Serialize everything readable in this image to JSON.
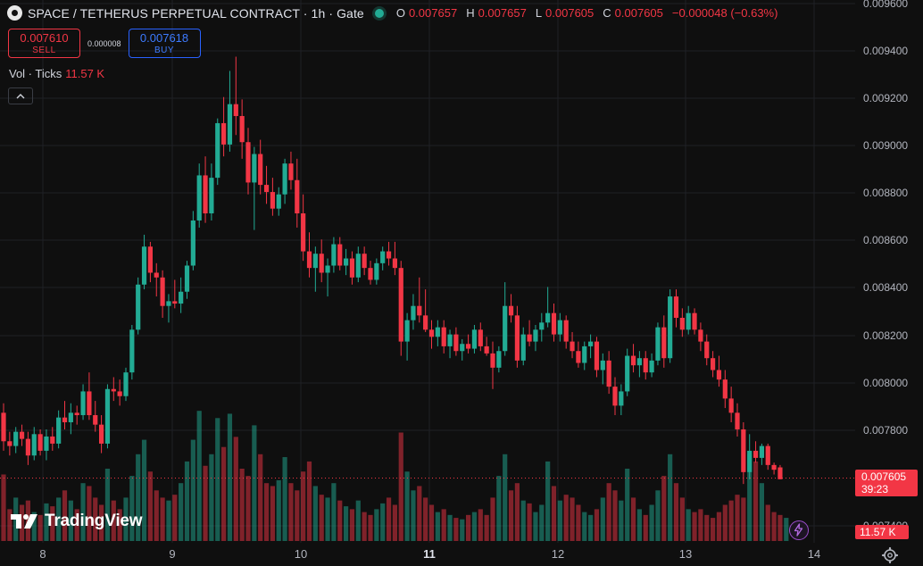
{
  "header": {
    "title": "SPACE / TETHERUS PERPETUAL CONTRACT · 1h · Gate",
    "ohlc": [
      {
        "key": "O",
        "value": "0.007657"
      },
      {
        "key": "H",
        "value": "0.007657"
      },
      {
        "key": "L",
        "value": "0.007605"
      },
      {
        "key": "C",
        "value": "0.007605"
      }
    ],
    "change": "−0.000048 (−0.63%)"
  },
  "trade": {
    "sell_price": "0.007610",
    "sell_label": "SELL",
    "spread": "0.000008",
    "buy_price": "0.007618",
    "buy_label": "BUY"
  },
  "volume_legend": {
    "label": "Vol · Ticks",
    "value": "11.57 K"
  },
  "price_tag": {
    "price": "0.007605",
    "countdown": "39:23"
  },
  "volume_tag": "11.57 K",
  "brand": "TradingView",
  "colors": {
    "up": "#22ab94",
    "down": "#f23645",
    "background": "#0f0f0f",
    "grid": "#1f2125"
  },
  "icons": [
    "collapse-chevron-up-icon",
    "gear-icon",
    "lightning-icon",
    "tradingview-logo"
  ],
  "chart_data": {
    "type": "candlestick",
    "interval": "1h",
    "ylim": [
      0.0074,
      0.0096
    ],
    "y_ticks": [
      "0.009600",
      "0.009400",
      "0.009200",
      "0.009000",
      "0.008800",
      "0.008600",
      "0.008400",
      "0.008200",
      "0.008000",
      "0.007800",
      "0.007400"
    ],
    "x_ticks": [
      {
        "label": "8",
        "bold": false
      },
      {
        "label": "9",
        "bold": false
      },
      {
        "label": "10",
        "bold": false
      },
      {
        "label": "11",
        "bold": true
      },
      {
        "label": "12",
        "bold": false
      },
      {
        "label": "13",
        "bold": false
      },
      {
        "label": "14",
        "bold": false
      }
    ],
    "close_line": 0.007605,
    "candles": [
      [
        0.00788,
        0.00792,
        0.00772,
        0.00776
      ],
      [
        0.00776,
        0.0078,
        0.0077,
        0.00774
      ],
      [
        0.00774,
        0.00782,
        0.00771,
        0.0078
      ],
      [
        0.0078,
        0.00783,
        0.00774,
        0.00777
      ],
      [
        0.00777,
        0.0078,
        0.00766,
        0.0077
      ],
      [
        0.0077,
        0.00782,
        0.00768,
        0.00779
      ],
      [
        0.00779,
        0.00781,
        0.0077,
        0.00772
      ],
      [
        0.00772,
        0.00781,
        0.00768,
        0.00778
      ],
      [
        0.00778,
        0.00782,
        0.00772,
        0.00775
      ],
      [
        0.00775,
        0.00789,
        0.00773,
        0.00786
      ],
      [
        0.00786,
        0.00793,
        0.00781,
        0.00784
      ],
      [
        0.00784,
        0.00792,
        0.00779,
        0.00788
      ],
      [
        0.00788,
        0.00791,
        0.00783,
        0.00787
      ],
      [
        0.00787,
        0.008,
        0.00785,
        0.00797
      ],
      [
        0.00797,
        0.00805,
        0.00785,
        0.00787
      ],
      [
        0.00787,
        0.00793,
        0.0078,
        0.00783
      ],
      [
        0.00783,
        0.00787,
        0.00771,
        0.00775
      ],
      [
        0.00775,
        0.008,
        0.00773,
        0.00798
      ],
      [
        0.00798,
        0.00803,
        0.00793,
        0.00797
      ],
      [
        0.00797,
        0.00802,
        0.00791,
        0.00795
      ],
      [
        0.00795,
        0.00807,
        0.00793,
        0.00805
      ],
      [
        0.00805,
        0.00825,
        0.00802,
        0.00823
      ],
      [
        0.00823,
        0.00845,
        0.00821,
        0.00842
      ],
      [
        0.00842,
        0.00863,
        0.0084,
        0.00858
      ],
      [
        0.00858,
        0.0086,
        0.00843,
        0.00847
      ],
      [
        0.00847,
        0.00851,
        0.00837,
        0.00845
      ],
      [
        0.00845,
        0.00848,
        0.00828,
        0.00833
      ],
      [
        0.00833,
        0.00838,
        0.00826,
        0.00835
      ],
      [
        0.00835,
        0.00844,
        0.00832,
        0.00834
      ],
      [
        0.00834,
        0.00845,
        0.0083,
        0.00839
      ],
      [
        0.00839,
        0.00852,
        0.00836,
        0.0085
      ],
      [
        0.0085,
        0.00873,
        0.00848,
        0.00869
      ],
      [
        0.00869,
        0.00893,
        0.00866,
        0.00888
      ],
      [
        0.00888,
        0.00896,
        0.00868,
        0.00872
      ],
      [
        0.00872,
        0.00893,
        0.00869,
        0.00887
      ],
      [
        0.00887,
        0.00912,
        0.00884,
        0.0091
      ],
      [
        0.0091,
        0.00921,
        0.00896,
        0.00901
      ],
      [
        0.00901,
        0.00932,
        0.00898,
        0.00918
      ],
      [
        0.00918,
        0.00938,
        0.00905,
        0.00913
      ],
      [
        0.00913,
        0.0092,
        0.00895,
        0.00902
      ],
      [
        0.00902,
        0.00908,
        0.0088,
        0.00885
      ],
      [
        0.00885,
        0.009,
        0.00865,
        0.00897
      ],
      [
        0.00897,
        0.00903,
        0.0088,
        0.00884
      ],
      [
        0.00884,
        0.00892,
        0.00876,
        0.00881
      ],
      [
        0.00881,
        0.00887,
        0.00871,
        0.00874
      ],
      [
        0.00874,
        0.00883,
        0.00871,
        0.0088
      ],
      [
        0.0088,
        0.00895,
        0.00876,
        0.00893
      ],
      [
        0.00893,
        0.00898,
        0.00882,
        0.00886
      ],
      [
        0.00886,
        0.00895,
        0.00866,
        0.00872
      ],
      [
        0.00872,
        0.0088,
        0.00852,
        0.00856
      ],
      [
        0.00856,
        0.00864,
        0.00845,
        0.00849
      ],
      [
        0.00849,
        0.00858,
        0.00839,
        0.00855
      ],
      [
        0.00855,
        0.00861,
        0.00843,
        0.00847
      ],
      [
        0.00847,
        0.00853,
        0.00837,
        0.0085
      ],
      [
        0.0085,
        0.00862,
        0.00847,
        0.00859
      ],
      [
        0.00859,
        0.00862,
        0.00848,
        0.0085
      ],
      [
        0.0085,
        0.00857,
        0.00846,
        0.00853
      ],
      [
        0.00853,
        0.00856,
        0.00842,
        0.00845
      ],
      [
        0.00845,
        0.00858,
        0.00843,
        0.00855
      ],
      [
        0.00855,
        0.00858,
        0.00846,
        0.00849
      ],
      [
        0.00849,
        0.00852,
        0.00842,
        0.00844
      ],
      [
        0.00844,
        0.00853,
        0.00842,
        0.00851
      ],
      [
        0.00851,
        0.00858,
        0.00848,
        0.00856
      ],
      [
        0.00856,
        0.0086,
        0.0085,
        0.00853
      ],
      [
        0.00853,
        0.0086,
        0.00846,
        0.00849
      ],
      [
        0.00849,
        0.00852,
        0.00812,
        0.00818
      ],
      [
        0.00818,
        0.0083,
        0.0081,
        0.00827
      ],
      [
        0.00827,
        0.00838,
        0.00823,
        0.00833
      ],
      [
        0.00833,
        0.00845,
        0.00826,
        0.00829
      ],
      [
        0.00829,
        0.0084,
        0.00822,
        0.00823
      ],
      [
        0.00823,
        0.00827,
        0.00815,
        0.0082
      ],
      [
        0.0082,
        0.00827,
        0.00816,
        0.00824
      ],
      [
        0.00824,
        0.00827,
        0.00813,
        0.00816
      ],
      [
        0.00816,
        0.00823,
        0.00811,
        0.00821
      ],
      [
        0.00821,
        0.00824,
        0.00812,
        0.00814
      ],
      [
        0.00814,
        0.00819,
        0.0081,
        0.00817
      ],
      [
        0.00817,
        0.00821,
        0.00813,
        0.00815
      ],
      [
        0.00815,
        0.00825,
        0.00813,
        0.00823
      ],
      [
        0.00823,
        0.00826,
        0.00814,
        0.00816
      ],
      [
        0.00816,
        0.0082,
        0.00812,
        0.00813
      ],
      [
        0.00813,
        0.00818,
        0.00798,
        0.00807
      ],
      [
        0.00807,
        0.00816,
        0.00805,
        0.00814
      ],
      [
        0.00814,
        0.00843,
        0.00812,
        0.00833
      ],
      [
        0.00833,
        0.00838,
        0.00826,
        0.00829
      ],
      [
        0.00829,
        0.00833,
        0.00807,
        0.0081
      ],
      [
        0.0081,
        0.00824,
        0.00808,
        0.00821
      ],
      [
        0.00821,
        0.00827,
        0.00816,
        0.00818
      ],
      [
        0.00818,
        0.00825,
        0.00814,
        0.00823
      ],
      [
        0.00823,
        0.0083,
        0.00818,
        0.00826
      ],
      [
        0.00826,
        0.00841,
        0.00824,
        0.0083
      ],
      [
        0.0083,
        0.00834,
        0.00818,
        0.00821
      ],
      [
        0.00821,
        0.0083,
        0.00818,
        0.00827
      ],
      [
        0.00827,
        0.00829,
        0.00815,
        0.00818
      ],
      [
        0.00818,
        0.00822,
        0.00811,
        0.00814
      ],
      [
        0.00814,
        0.00818,
        0.00807,
        0.00809
      ],
      [
        0.00809,
        0.00818,
        0.00806,
        0.00816
      ],
      [
        0.00816,
        0.00821,
        0.00811,
        0.00818
      ],
      [
        0.00818,
        0.0082,
        0.00803,
        0.00806
      ],
      [
        0.00806,
        0.00813,
        0.008,
        0.0081
      ],
      [
        0.0081,
        0.00814,
        0.00796,
        0.00799
      ],
      [
        0.00799,
        0.00803,
        0.00787,
        0.00791
      ],
      [
        0.00791,
        0.008,
        0.00787,
        0.00797
      ],
      [
        0.00797,
        0.00815,
        0.00795,
        0.00812
      ],
      [
        0.00812,
        0.00817,
        0.00805,
        0.00808
      ],
      [
        0.00808,
        0.00814,
        0.00803,
        0.00811
      ],
      [
        0.00811,
        0.00814,
        0.00802,
        0.00805
      ],
      [
        0.00805,
        0.00813,
        0.00803,
        0.0081
      ],
      [
        0.0081,
        0.00826,
        0.00808,
        0.00824
      ],
      [
        0.00824,
        0.00829,
        0.00807,
        0.00811
      ],
      [
        0.00811,
        0.0084,
        0.00809,
        0.00837
      ],
      [
        0.00837,
        0.0084,
        0.00824,
        0.00828
      ],
      [
        0.00828,
        0.00832,
        0.0082,
        0.00823
      ],
      [
        0.00823,
        0.00833,
        0.00821,
        0.0083
      ],
      [
        0.0083,
        0.00832,
        0.00821,
        0.00823
      ],
      [
        0.00823,
        0.00826,
        0.00814,
        0.00818
      ],
      [
        0.00818,
        0.00821,
        0.00808,
        0.00811
      ],
      [
        0.00811,
        0.00814,
        0.00803,
        0.00806
      ],
      [
        0.00806,
        0.00812,
        0.00799,
        0.00802
      ],
      [
        0.00802,
        0.00806,
        0.0079,
        0.00794
      ],
      [
        0.00794,
        0.00799,
        0.00784,
        0.00788
      ],
      [
        0.00788,
        0.00792,
        0.00778,
        0.00781
      ],
      [
        0.00781,
        0.00784,
        0.00758,
        0.00763
      ],
      [
        0.00763,
        0.00779,
        0.0076,
        0.00772
      ],
      [
        0.00772,
        0.00776,
        0.00767,
        0.00769
      ],
      [
        0.00769,
        0.00775,
        0.00766,
        0.00774
      ],
      [
        0.00774,
        0.00775,
        0.00764,
        0.00766
      ],
      [
        0.00766,
        0.00767,
        0.00762,
        0.00764
      ],
      [
        0.00765,
        0.00766,
        0.0076,
        0.0076
      ]
    ],
    "volumes": [
      46,
      22,
      30,
      25,
      28,
      20,
      18,
      26,
      24,
      30,
      35,
      28,
      22,
      40,
      38,
      30,
      25,
      50,
      28,
      22,
      30,
      45,
      60,
      70,
      48,
      35,
      30,
      28,
      32,
      40,
      55,
      70,
      90,
      52,
      60,
      85,
      65,
      88,
      72,
      50,
      45,
      80,
      60,
      40,
      38,
      42,
      58,
      40,
      35,
      48,
      55,
      38,
      32,
      30,
      40,
      28,
      24,
      22,
      28,
      20,
      18,
      22,
      26,
      30,
      25,
      75,
      48,
      35,
      38,
      30,
      25,
      20,
      22,
      18,
      16,
      15,
      18,
      20,
      22,
      18,
      30,
      45,
      60,
      35,
      40,
      28,
      26,
      20,
      25,
      55,
      38,
      28,
      32,
      30,
      25,
      20,
      18,
      22,
      30,
      40,
      35,
      28,
      50,
      30,
      22,
      18,
      25,
      35,
      45,
      60,
      40,
      30,
      22,
      20,
      22,
      18,
      16,
      20,
      25,
      28,
      32,
      30,
      60,
      55,
      40,
      25,
      20,
      18,
      16
    ]
  }
}
